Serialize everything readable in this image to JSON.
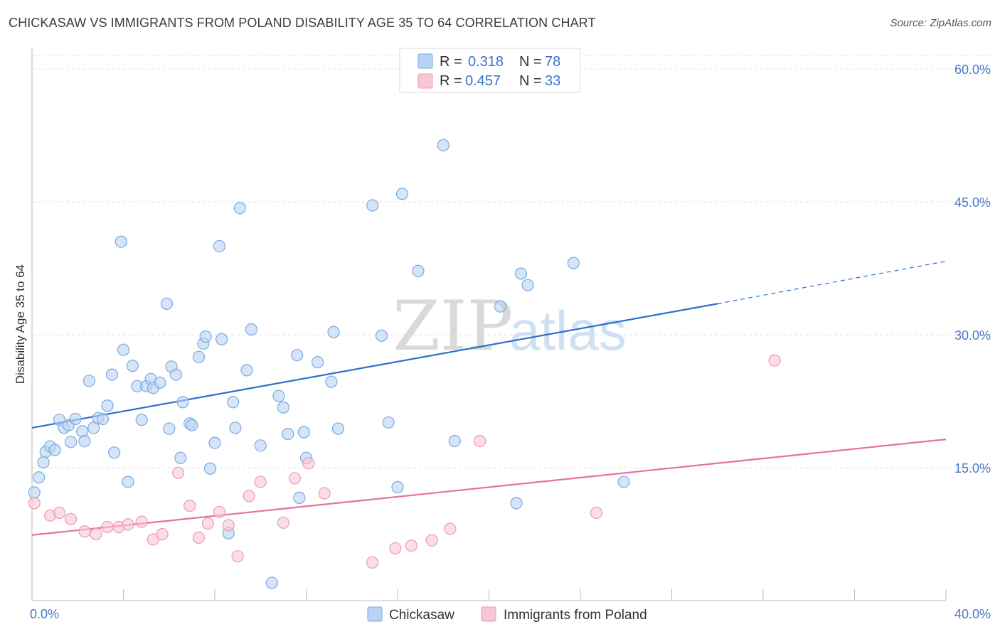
{
  "title": "CHICKASAW VS IMMIGRANTS FROM POLAND DISABILITY AGE 35 TO 64 CORRELATION CHART",
  "source": "Source: ZipAtlas.com",
  "watermark": {
    "zip": "ZIP",
    "atlas": "atlas"
  },
  "legend": {
    "r_label": "R =",
    "n_label": "N =",
    "rows": [
      {
        "r": "0.318",
        "n": "78",
        "fill": "#b9d3f3",
        "stroke": "#7ea8de"
      },
      {
        "r": "0.457",
        "n": "33",
        "fill": "#f8c6d6",
        "stroke": "#ec9ab5"
      }
    ]
  },
  "chart_data": {
    "type": "scatter",
    "ylabel": "Disability Age 35 to 64",
    "xlim": [
      0,
      40
    ],
    "ylim": [
      0,
      60
    ],
    "x_tick_labels": [
      {
        "value": 0,
        "label": "0.0%"
      },
      {
        "value": 40,
        "label": "40.0%"
      }
    ],
    "y_tick_labels": [
      {
        "value": 15,
        "label": "15.0%"
      },
      {
        "value": 30,
        "label": "30.0%"
      },
      {
        "value": 45,
        "label": "45.0%"
      },
      {
        "value": 60,
        "label": "60.0%"
      }
    ],
    "grid": true,
    "series": [
      {
        "name": "Chickasaw",
        "color": "#7ea8de",
        "fill": "#b9d3f3",
        "line_color": "#2e6fce",
        "trend": {
          "x0": 0,
          "y0": 19.5,
          "x1": 30,
          "y1": 33.5,
          "dashed_to_x": 40,
          "dashed_to_y": 38.3
        },
        "points": [
          [
            0.1,
            12.2
          ],
          [
            0.3,
            13.9
          ],
          [
            0.5,
            15.6
          ],
          [
            0.6,
            16.8
          ],
          [
            0.8,
            17.4
          ],
          [
            1.0,
            17.0
          ],
          [
            1.2,
            20.4
          ],
          [
            1.4,
            19.5
          ],
          [
            1.6,
            19.8
          ],
          [
            1.7,
            17.9
          ],
          [
            1.9,
            20.5
          ],
          [
            2.2,
            19.1
          ],
          [
            2.3,
            18.0
          ],
          [
            2.5,
            24.8
          ],
          [
            2.7,
            19.5
          ],
          [
            2.9,
            20.6
          ],
          [
            3.1,
            20.5
          ],
          [
            3.3,
            22.0
          ],
          [
            3.5,
            25.5
          ],
          [
            3.6,
            16.7
          ],
          [
            3.9,
            40.5
          ],
          [
            4.0,
            28.3
          ],
          [
            4.2,
            13.4
          ],
          [
            4.4,
            26.5
          ],
          [
            4.6,
            24.2
          ],
          [
            4.8,
            20.4
          ],
          [
            5.0,
            24.2
          ],
          [
            5.2,
            25.0
          ],
          [
            5.3,
            24.0
          ],
          [
            5.6,
            24.6
          ],
          [
            5.9,
            33.5
          ],
          [
            6.0,
            19.4
          ],
          [
            6.1,
            26.4
          ],
          [
            6.3,
            25.5
          ],
          [
            6.5,
            16.1
          ],
          [
            6.6,
            22.4
          ],
          [
            6.9,
            20.0
          ],
          [
            7.0,
            19.8
          ],
          [
            7.3,
            27.5
          ],
          [
            7.5,
            29.0
          ],
          [
            7.6,
            29.8
          ],
          [
            7.8,
            14.9
          ],
          [
            8.0,
            17.8
          ],
          [
            8.2,
            40.0
          ],
          [
            8.3,
            29.5
          ],
          [
            8.6,
            7.6
          ],
          [
            8.8,
            22.4
          ],
          [
            8.9,
            19.5
          ],
          [
            9.1,
            44.3
          ],
          [
            9.4,
            26.0
          ],
          [
            9.6,
            30.6
          ],
          [
            10.0,
            17.5
          ],
          [
            10.5,
            2.0
          ],
          [
            10.8,
            23.1
          ],
          [
            11.0,
            21.8
          ],
          [
            11.2,
            18.8
          ],
          [
            11.6,
            27.7
          ],
          [
            11.7,
            11.6
          ],
          [
            11.9,
            19.0
          ],
          [
            12.0,
            16.1
          ],
          [
            12.5,
            26.9
          ],
          [
            13.1,
            24.7
          ],
          [
            13.2,
            30.3
          ],
          [
            13.4,
            19.4
          ],
          [
            14.9,
            44.6
          ],
          [
            15.3,
            29.9
          ],
          [
            15.6,
            20.1
          ],
          [
            16.0,
            12.8
          ],
          [
            16.2,
            45.9
          ],
          [
            16.9,
            37.2
          ],
          [
            18.0,
            51.4
          ],
          [
            18.5,
            18.0
          ],
          [
            20.5,
            33.2
          ],
          [
            21.2,
            11.0
          ],
          [
            21.4,
            36.9
          ],
          [
            21.7,
            35.6
          ],
          [
            23.7,
            38.1
          ],
          [
            25.9,
            13.4
          ]
        ]
      },
      {
        "name": "Immigrants from Poland",
        "color": "#ec9ab5",
        "fill": "#f8c6d6",
        "line_color": "#e5729a",
        "trend": {
          "x0": 0,
          "y0": 7.4,
          "x1": 40,
          "y1": 18.2
        },
        "points": [
          [
            0.1,
            11.0
          ],
          [
            0.8,
            9.6
          ],
          [
            1.2,
            9.9
          ],
          [
            1.7,
            9.2
          ],
          [
            2.3,
            7.8
          ],
          [
            2.8,
            7.5
          ],
          [
            3.3,
            8.3
          ],
          [
            3.8,
            8.3
          ],
          [
            4.2,
            8.6
          ],
          [
            4.8,
            8.9
          ],
          [
            5.3,
            6.9
          ],
          [
            5.7,
            7.5
          ],
          [
            6.4,
            14.4
          ],
          [
            6.9,
            10.7
          ],
          [
            7.3,
            7.1
          ],
          [
            7.7,
            8.7
          ],
          [
            8.2,
            10.0
          ],
          [
            8.6,
            8.5
          ],
          [
            9.0,
            5.0
          ],
          [
            9.5,
            11.8
          ],
          [
            10.0,
            13.4
          ],
          [
            11.0,
            8.8
          ],
          [
            11.5,
            13.8
          ],
          [
            12.1,
            15.5
          ],
          [
            12.8,
            12.1
          ],
          [
            14.9,
            4.3
          ],
          [
            15.9,
            5.9
          ],
          [
            16.6,
            6.2
          ],
          [
            17.5,
            6.8
          ],
          [
            18.3,
            8.1
          ],
          [
            19.6,
            18.0
          ],
          [
            24.7,
            9.9
          ],
          [
            32.5,
            27.1
          ]
        ]
      }
    ]
  }
}
